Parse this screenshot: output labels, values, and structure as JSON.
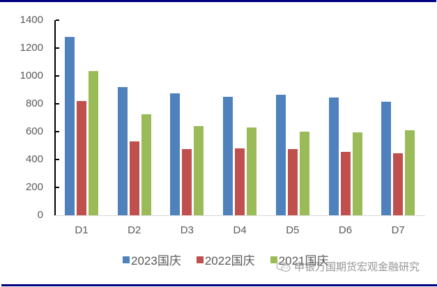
{
  "chart_data": {
    "type": "bar",
    "title": "",
    "xlabel": "",
    "ylabel": "",
    "categories": [
      "D1",
      "D2",
      "D3",
      "D4",
      "D5",
      "D6",
      "D7"
    ],
    "series": [
      {
        "name": "2023国庆",
        "color": "#4F81BD",
        "values": [
          1280,
          920,
          875,
          850,
          865,
          845,
          815
        ]
      },
      {
        "name": "2022国庆",
        "color": "#C0504D",
        "values": [
          820,
          530,
          475,
          480,
          475,
          455,
          445
        ]
      },
      {
        "name": "2021国庆",
        "color": "#9BBB59",
        "values": [
          1035,
          725,
          640,
          630,
          600,
          595,
          610
        ]
      }
    ],
    "ylim": [
      0,
      1400
    ],
    "yticks": [
      0,
      200,
      400,
      600,
      800,
      1000,
      1200,
      1400
    ],
    "grid": false,
    "legend_position": "bottom"
  },
  "watermark": {
    "text": "申银万国期货宏观金融研究",
    "icon": "wechat-icon"
  },
  "frame": {
    "border_color": "#000080"
  }
}
